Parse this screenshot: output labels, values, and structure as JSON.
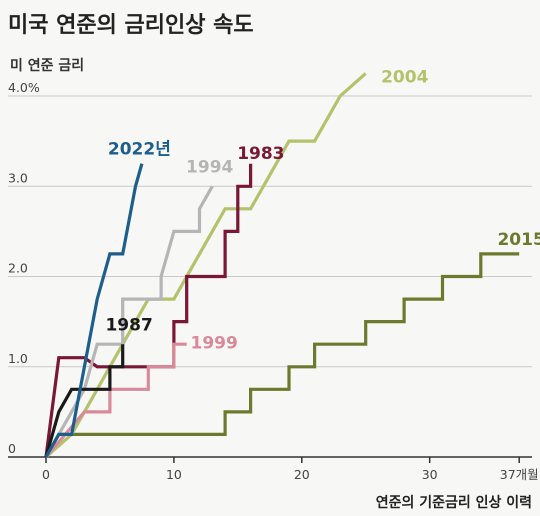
{
  "chart_data": {
    "type": "line",
    "title": "미국 연준의 금리인상 속도",
    "ylabel": "미 연준 금리",
    "xlabel": "연준의 기준금리 인상 이력",
    "xlim": [
      0,
      38
    ],
    "ylim": [
      0,
      4.0
    ],
    "x_ticks": [
      "0",
      "10",
      "20",
      "30",
      "37개월"
    ],
    "x_tick_values": [
      0,
      10,
      20,
      30,
      37
    ],
    "y_ticks": [
      "0",
      "1.0",
      "2.0",
      "3.0",
      "4.0%"
    ],
    "y_tick_values": [
      0,
      1.0,
      2.0,
      3.0,
      4.0
    ],
    "grid": "horizontal",
    "series": [
      {
        "name": "2015",
        "color": "#6b7a2e",
        "points": [
          [
            0,
            0
          ],
          [
            1,
            0.25
          ],
          [
            14,
            0.25
          ],
          [
            14,
            0.5
          ],
          [
            16,
            0.5
          ],
          [
            16,
            0.75
          ],
          [
            19,
            0.75
          ],
          [
            19,
            1.0
          ],
          [
            21,
            1.0
          ],
          [
            21,
            1.25
          ],
          [
            25,
            1.25
          ],
          [
            25,
            1.5
          ],
          [
            28,
            1.5
          ],
          [
            28,
            1.75
          ],
          [
            31,
            1.75
          ],
          [
            31,
            2.0
          ],
          [
            34,
            2.0
          ],
          [
            34,
            2.25
          ],
          [
            37,
            2.25
          ]
        ]
      },
      {
        "name": "2004",
        "color": "#b3c26b",
        "points": [
          [
            0,
            0
          ],
          [
            2,
            0.25
          ],
          [
            3,
            0.5
          ],
          [
            4,
            0.75
          ],
          [
            5,
            1.0
          ],
          [
            6,
            1.25
          ],
          [
            7,
            1.5
          ],
          [
            8,
            1.75
          ],
          [
            10,
            1.75
          ],
          [
            11,
            2.0
          ],
          [
            12,
            2.25
          ],
          [
            13,
            2.5
          ],
          [
            14,
            2.75
          ],
          [
            16,
            2.75
          ],
          [
            17,
            3.0
          ],
          [
            18,
            3.25
          ],
          [
            19,
            3.5
          ],
          [
            21,
            3.5
          ],
          [
            22,
            3.75
          ],
          [
            23,
            4.0
          ],
          [
            25,
            4.25
          ]
        ]
      },
      {
        "name": "1983",
        "color": "#7a1636",
        "points": [
          [
            0,
            0
          ],
          [
            1,
            1.1
          ],
          [
            2,
            1.1
          ],
          [
            3,
            1.1
          ],
          [
            4,
            1.0
          ],
          [
            5,
            1.0
          ],
          [
            10,
            1.0
          ],
          [
            10,
            1.5
          ],
          [
            11,
            1.5
          ],
          [
            11,
            2.0
          ],
          [
            14,
            2.0
          ],
          [
            14,
            2.5
          ],
          [
            15,
            2.5
          ],
          [
            15,
            3.0
          ],
          [
            16,
            3.0
          ],
          [
            16,
            3.25
          ]
        ]
      },
      {
        "name": "1999",
        "color": "#d98a9a",
        "points": [
          [
            0,
            0
          ],
          [
            3,
            0.5
          ],
          [
            5,
            0.5
          ],
          [
            5,
            0.75
          ],
          [
            8,
            0.75
          ],
          [
            8,
            1.0
          ],
          [
            10,
            1.0
          ],
          [
            10,
            1.25
          ],
          [
            11,
            1.25
          ]
        ]
      },
      {
        "name": "1994",
        "color": "#b5b5b5",
        "points": [
          [
            0,
            0
          ],
          [
            1,
            0.25
          ],
          [
            2,
            0.5
          ],
          [
            3,
            0.75
          ],
          [
            4,
            1.25
          ],
          [
            6,
            1.25
          ],
          [
            6,
            1.75
          ],
          [
            9,
            1.75
          ],
          [
            9,
            2.0
          ],
          [
            10,
            2.5
          ],
          [
            12,
            2.5
          ],
          [
            12,
            2.75
          ],
          [
            13,
            3.0
          ]
        ]
      },
      {
        "name": "1987",
        "color": "#1a1a1a",
        "points": [
          [
            0,
            0
          ],
          [
            1,
            0.5
          ],
          [
            2,
            0.75
          ],
          [
            5,
            0.75
          ],
          [
            5,
            1.0
          ],
          [
            6,
            1.0
          ],
          [
            6,
            1.25
          ]
        ]
      },
      {
        "name": "2022년",
        "color": "#1c5e8c",
        "points": [
          [
            0,
            0
          ],
          [
            1,
            0.25
          ],
          [
            2,
            0.25
          ],
          [
            3,
            1.0
          ],
          [
            4,
            1.75
          ],
          [
            5,
            2.25
          ],
          [
            6,
            2.25
          ],
          [
            7,
            3.0
          ],
          [
            7.5,
            3.25
          ]
        ]
      }
    ],
    "series_labels": [
      {
        "text": "2004",
        "series": "2004",
        "x": 26.2,
        "y": 4.15,
        "anchor": "start"
      },
      {
        "text": "2015",
        "series": "2015",
        "x": 35.3,
        "y": 2.35,
        "anchor": "start"
      },
      {
        "text": "1983",
        "series": "1983",
        "x": 16.8,
        "y": 3.3,
        "anchor": "middle"
      },
      {
        "text": "1994",
        "series": "1994",
        "x": 12.8,
        "y": 3.15,
        "anchor": "middle"
      },
      {
        "text": "2022년",
        "series": "2022년",
        "x": 7.3,
        "y": 3.35,
        "anchor": "middle"
      },
      {
        "text": "1987",
        "series": "1987",
        "x": 6.5,
        "y": 1.4,
        "anchor": "middle"
      },
      {
        "text": "1999",
        "series": "1999",
        "x": 11.3,
        "y": 1.2,
        "anchor": "start"
      }
    ]
  }
}
